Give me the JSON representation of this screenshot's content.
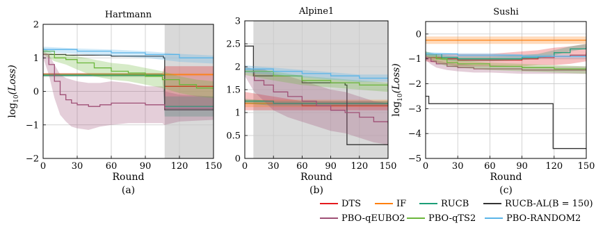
{
  "chart_data": [
    {
      "type": "line",
      "title": "Hartmann",
      "xlabel": "Round",
      "ylabel_main": "log",
      "ylabel_sub": "10",
      "ylabel_arg": "(Loss)",
      "caption": "(a)",
      "xlim": [
        0,
        150
      ],
      "ylim": [
        -2,
        2
      ],
      "xticks": [
        0,
        30,
        60,
        90,
        120,
        150
      ],
      "yticks": [
        -2,
        -1,
        0,
        1,
        2
      ],
      "shaded_region": [
        107,
        150
      ],
      "series": [
        {
          "name": "DTS",
          "x": [
            0,
            105,
            107,
            150
          ],
          "y": [
            0.5,
            0.5,
            0.15,
            0.15
          ],
          "band": [
            0.05,
            0.05,
            0.6,
            0.6
          ]
        },
        {
          "name": "IF",
          "x": [
            0,
            150
          ],
          "y": [
            0.5,
            0.5
          ],
          "band": [
            0.04,
            0.04
          ]
        },
        {
          "name": "RUCB",
          "x": [
            0,
            105,
            107,
            150
          ],
          "y": [
            0.48,
            0.48,
            -0.45,
            -0.45
          ],
          "band": [
            0.05,
            0.05,
            0.3,
            0.3
          ]
        },
        {
          "name": "RUCB-AL(B = 150)",
          "x": [
            0,
            20,
            60,
            100,
            106,
            107,
            150
          ],
          "y": [
            1.1,
            1.08,
            1.05,
            1.05,
            1.0,
            -0.55,
            -0.55
          ],
          "band": [
            0,
            0,
            0,
            0,
            0,
            0,
            0
          ]
        },
        {
          "name": "PBO-qEUBO2",
          "x": [
            0,
            5,
            10,
            15,
            20,
            25,
            30,
            40,
            50,
            60,
            75,
            90,
            105,
            107,
            120,
            150
          ],
          "y": [
            1.1,
            0.8,
            0.3,
            -0.1,
            -0.25,
            -0.35,
            -0.4,
            -0.45,
            -0.4,
            -0.35,
            -0.35,
            -0.4,
            -0.4,
            -0.5,
            -0.5,
            -0.5
          ],
          "band": [
            0.1,
            0.3,
            0.5,
            0.6,
            0.65,
            0.7,
            0.7,
            0.7,
            0.65,
            0.65,
            0.6,
            0.55,
            0.55,
            0.5,
            0.4,
            0.35
          ]
        },
        {
          "name": "PBO-qTS2",
          "x": [
            0,
            10,
            20,
            30,
            45,
            60,
            75,
            90,
            105,
            120,
            135,
            150
          ],
          "y": [
            1.2,
            1.0,
            0.95,
            0.85,
            0.7,
            0.6,
            0.55,
            0.45,
            0.35,
            0.2,
            0.1,
            0.05
          ],
          "band": [
            0.1,
            0.1,
            0.15,
            0.2,
            0.25,
            0.25,
            0.25,
            0.25,
            0.25,
            0.25,
            0.25,
            0.25
          ]
        },
        {
          "name": "PBO-RANDOM2",
          "x": [
            0,
            30,
            60,
            90,
            120,
            150
          ],
          "y": [
            1.25,
            1.2,
            1.15,
            1.1,
            1.0,
            0.95
          ],
          "band": [
            0.08,
            0.08,
            0.1,
            0.1,
            0.12,
            0.12
          ]
        }
      ]
    },
    {
      "type": "line",
      "title": "Alpine1",
      "xlabel": "Round",
      "caption": "(b)",
      "xlim": [
        0,
        150
      ],
      "ylim": [
        0,
        3
      ],
      "xticks": [
        0,
        30,
        60,
        90,
        120,
        150
      ],
      "yticks": [
        0,
        0.5,
        1,
        1.5,
        2,
        2.5,
        3
      ],
      "ytick_labels": [
        "0",
        "0.5",
        "1",
        "1.5",
        "2",
        "2.5",
        "3"
      ],
      "shaded_region": [
        9,
        150
      ],
      "series": [
        {
          "name": "DTS",
          "x": [
            0,
            30,
            60,
            90,
            120,
            150
          ],
          "y": [
            1.25,
            1.2,
            1.15,
            1.15,
            1.15,
            1.15
          ],
          "band": [
            0.2,
            0.15,
            0.1,
            0.1,
            0.1,
            0.1
          ]
        },
        {
          "name": "IF",
          "x": [
            0,
            30,
            60,
            90,
            120,
            150
          ],
          "y": [
            1.2,
            1.2,
            1.2,
            1.2,
            1.2,
            1.2
          ],
          "band": [
            0.08,
            0.08,
            0.08,
            0.08,
            0.08,
            0.08
          ]
        },
        {
          "name": "RUCB",
          "x": [
            0,
            30,
            60,
            90,
            120,
            150
          ],
          "y": [
            1.25,
            1.2,
            1.2,
            1.2,
            1.2,
            1.2
          ],
          "band": [
            0.05,
            0.05,
            0.05,
            0.05,
            0.05,
            0.05
          ]
        },
        {
          "name": "RUCB-AL(B = 150)",
          "x": [
            0,
            8,
            9,
            60,
            105,
            107,
            150
          ],
          "y": [
            2.45,
            2.45,
            1.8,
            1.65,
            1.6,
            0.3,
            0.3
          ],
          "band": [
            0,
            0,
            0,
            0,
            0,
            0,
            0
          ]
        },
        {
          "name": "PBO-qEUBO2",
          "x": [
            0,
            10,
            20,
            30,
            45,
            60,
            75,
            90,
            105,
            120,
            135,
            150
          ],
          "y": [
            1.9,
            1.7,
            1.6,
            1.45,
            1.35,
            1.25,
            1.15,
            1.05,
            1.0,
            0.9,
            0.8,
            0.75
          ],
          "band": [
            0.1,
            0.25,
            0.35,
            0.4,
            0.45,
            0.45,
            0.45,
            0.45,
            0.45,
            0.45,
            0.45,
            0.45
          ]
        },
        {
          "name": "PBO-qTS2",
          "x": [
            0,
            30,
            60,
            90,
            120,
            150
          ],
          "y": [
            1.9,
            1.8,
            1.7,
            1.65,
            1.6,
            1.55
          ],
          "band": [
            0.08,
            0.1,
            0.1,
            0.1,
            0.1,
            0.1
          ]
        },
        {
          "name": "PBO-RANDOM2",
          "x": [
            0,
            30,
            60,
            90,
            120,
            150
          ],
          "y": [
            1.95,
            1.9,
            1.85,
            1.8,
            1.75,
            1.75
          ],
          "band": [
            0.08,
            0.08,
            0.08,
            0.08,
            0.08,
            0.08
          ]
        }
      ]
    },
    {
      "type": "line",
      "title": "Sushi",
      "xlabel": "Round",
      "ylabel_main": "log",
      "ylabel_sub": "10",
      "ylabel_arg": "(Loss)",
      "caption": "(c)",
      "xlim": [
        0,
        150
      ],
      "ylim": [
        -5,
        0.5
      ],
      "xticks": [
        0,
        30,
        60,
        90,
        120,
        150
      ],
      "yticks": [
        -5,
        -4,
        -3,
        -2,
        -1,
        0
      ],
      "series": [
        {
          "name": "DTS",
          "x": [
            0,
            15,
            30,
            60,
            90,
            105,
            120,
            135,
            150
          ],
          "y": [
            -0.95,
            -1.0,
            -1.05,
            -1.05,
            -1.0,
            -0.95,
            -0.9,
            -0.85,
            -0.75
          ],
          "band": [
            0.15,
            0.2,
            0.25,
            0.25,
            0.3,
            0.3,
            0.35,
            0.35,
            0.35
          ]
        },
        {
          "name": "IF",
          "x": [
            0,
            150
          ],
          "y": [
            -0.25,
            -0.25
          ],
          "band": [
            0.15,
            0.15
          ]
        },
        {
          "name": "RUCB",
          "x": [
            0,
            15,
            30,
            60,
            90,
            105,
            120,
            135,
            150
          ],
          "y": [
            -0.8,
            -0.95,
            -1.0,
            -1.0,
            -0.95,
            -0.9,
            -0.75,
            -0.6,
            -0.5
          ],
          "band": [
            0.1,
            0.1,
            0.1,
            0.1,
            0.1,
            0.1,
            0.1,
            0.1,
            0.1
          ]
        },
        {
          "name": "RUCB-AL(B = 150)",
          "x": [
            0,
            2,
            3,
            117,
            119,
            150
          ],
          "y": [
            -2.5,
            -2.5,
            -2.8,
            -2.8,
            -4.6,
            -4.6
          ],
          "band": [
            0,
            0,
            0,
            0,
            0,
            0
          ]
        },
        {
          "name": "PBO-qEUBO2",
          "x": [
            0,
            5,
            10,
            20,
            30,
            45,
            60,
            90,
            120,
            150
          ],
          "y": [
            -0.95,
            -1.1,
            -1.2,
            -1.3,
            -1.35,
            -1.4,
            -1.4,
            -1.45,
            -1.45,
            -1.45
          ],
          "band": [
            0.1,
            0.12,
            0.15,
            0.15,
            0.15,
            0.15,
            0.15,
            0.15,
            0.15,
            0.15
          ]
        },
        {
          "name": "PBO-qTS2",
          "x": [
            0,
            10,
            20,
            30,
            60,
            90,
            120,
            150
          ],
          "y": [
            -0.8,
            -1.0,
            -1.15,
            -1.2,
            -1.3,
            -1.35,
            -1.4,
            -1.45
          ],
          "band": [
            0.1,
            0.15,
            0.15,
            0.15,
            0.15,
            0.15,
            0.15,
            0.15
          ]
        },
        {
          "name": "PBO-RANDOM2",
          "x": [
            0,
            30,
            60,
            90,
            120,
            150
          ],
          "y": [
            -0.8,
            -0.85,
            -0.85,
            -0.9,
            -0.9,
            -0.9
          ],
          "band": [
            0.08,
            0.08,
            0.08,
            0.08,
            0.08,
            0.08
          ]
        }
      ]
    }
  ],
  "legend": {
    "entries": [
      {
        "name": "DTS",
        "color": "#e41a1c"
      },
      {
        "name": "IF",
        "color": "#ff7f0e"
      },
      {
        "name": "RUCB",
        "color": "#1b9e77"
      },
      {
        "name": "RUCB-AL(B = 150)",
        "color": "#333333"
      },
      {
        "name": "PBO-qEUBO2",
        "color": "#9e4f75"
      },
      {
        "name": "PBO-qTS2",
        "color": "#6ab63a"
      },
      {
        "name": "PBO-RANDOM2",
        "color": "#5ab4e8"
      }
    ]
  }
}
